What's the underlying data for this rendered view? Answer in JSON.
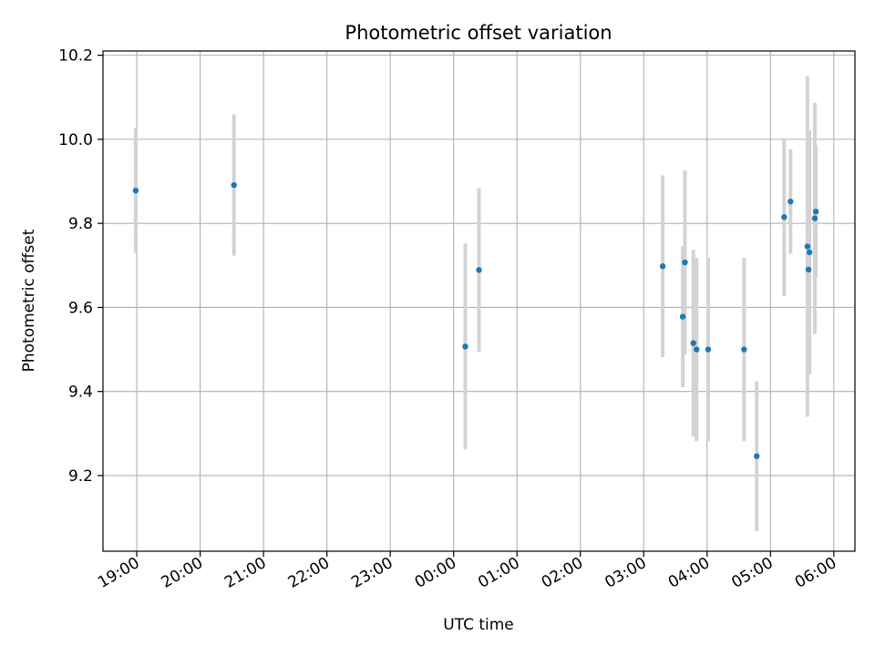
{
  "chart_data": {
    "type": "scatter",
    "title": "Photometric offset variation",
    "xlabel": "UTC time",
    "ylabel": "Photometric offset",
    "x_axis_kind": "time",
    "xlim": [
      "18:28",
      "06:20"
    ],
    "ylim": [
      9.02,
      10.21
    ],
    "x_ticks": [
      "19:00",
      "20:00",
      "21:00",
      "22:00",
      "23:00",
      "00:00",
      "01:00",
      "02:00",
      "03:00",
      "04:00",
      "05:00",
      "06:00"
    ],
    "y_ticks": [
      "9.2",
      "9.4",
      "9.6",
      "9.8",
      "10.0",
      "10.2"
    ],
    "grid": true,
    "legend": false,
    "series": [
      {
        "marker_color": "#1f77b4",
        "errorbar_color": "#d3d3d3",
        "points": [
          {
            "t": "18:59",
            "y": 9.878,
            "err": 0.148
          },
          {
            "t": "20:32",
            "y": 9.891,
            "err": 0.168
          },
          {
            "t": "00:11",
            "y": 9.507,
            "err": 0.245
          },
          {
            "t": "00:24",
            "y": 9.689,
            "err": 0.195
          },
          {
            "t": "03:18",
            "y": 9.698,
            "err": 0.216
          },
          {
            "t": "03:37",
            "y": 9.578,
            "err": 0.168
          },
          {
            "t": "03:39",
            "y": 9.707,
            "err": 0.219
          },
          {
            "t": "03:47",
            "y": 9.515,
            "err": 0.222
          },
          {
            "t": "03:50",
            "y": 9.5,
            "err": 0.218
          },
          {
            "t": "04:01",
            "y": 9.5,
            "err": 0.218
          },
          {
            "t": "04:35",
            "y": 9.5,
            "err": 0.218
          },
          {
            "t": "04:47",
            "y": 9.246,
            "err": 0.178
          },
          {
            "t": "05:13",
            "y": 9.815,
            "err": 0.188
          },
          {
            "t": "05:19",
            "y": 9.852,
            "err": 0.124
          },
          {
            "t": "05:35",
            "y": 9.745,
            "err": 0.405
          },
          {
            "t": "05:36",
            "y": 9.69,
            "err": 0.24
          },
          {
            "t": "05:37",
            "y": 9.731,
            "err": 0.29
          },
          {
            "t": "05:42",
            "y": 9.812,
            "err": 0.275
          },
          {
            "t": "05:43",
            "y": 9.828,
            "err": 0.158
          }
        ]
      }
    ]
  }
}
